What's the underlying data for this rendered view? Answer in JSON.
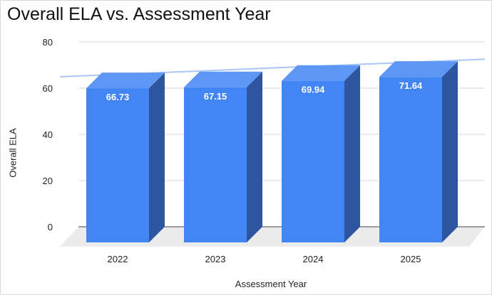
{
  "chart_data": {
    "type": "bar",
    "title": "Overall ELA vs. Assessment Year",
    "xlabel": "Assessment Year",
    "ylabel": "Overall ELA",
    "categories": [
      "2022",
      "2023",
      "2024",
      "2025"
    ],
    "values": [
      66.73,
      67.15,
      69.94,
      71.64
    ],
    "data_labels": [
      "66.73",
      "67.15",
      "69.94",
      "71.64"
    ],
    "yticks": [
      "80",
      "60",
      "40",
      "20",
      "0"
    ],
    "ytick_values": [
      80,
      60,
      40,
      20,
      0
    ],
    "ylim": [
      0,
      80
    ],
    "grid": true,
    "trendline": true,
    "trendline_range": [
      65,
      73
    ],
    "style": "3d",
    "colors": {
      "bar_front": "#4285f4",
      "bar_side": "#2d55a0",
      "bar_top": "#5e96f5",
      "trendline": "#a8c7f7",
      "grid": "#d9d9d9",
      "floor": "#ebebeb"
    }
  }
}
